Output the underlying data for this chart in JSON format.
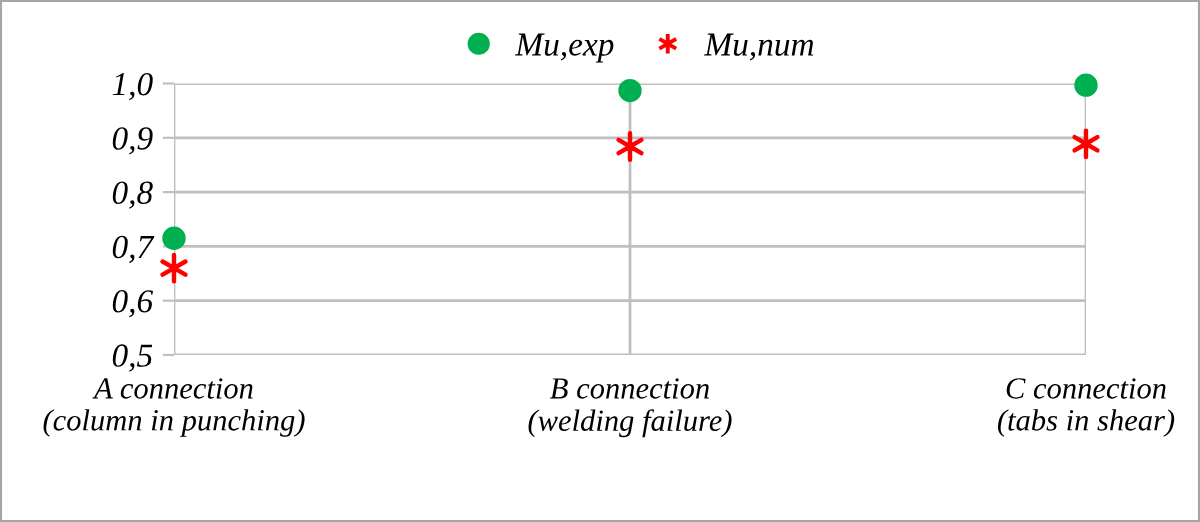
{
  "chart_data": {
    "type": "scatter",
    "categories": [
      "A connection\n(column in punching)",
      "B connection\n(welding failure)",
      "C connection\n(tabs in shear)"
    ],
    "series": [
      {
        "name": "Mu,exp",
        "color": "#00b050",
        "marker": "circle",
        "values": [
          0.715,
          0.987,
          0.997
        ]
      },
      {
        "name": "Mu,num",
        "color": "#ff0000",
        "marker": "cross",
        "values": [
          0.66,
          0.884,
          0.889
        ]
      }
    ],
    "ylim": [
      0.5,
      1.0
    ],
    "yticks": [
      {
        "value": 0.5,
        "label": "0,5"
      },
      {
        "value": 0.6,
        "label": "0,6"
      },
      {
        "value": 0.7,
        "label": "0,7"
      },
      {
        "value": 0.8,
        "label": "0,8"
      },
      {
        "value": 0.9,
        "label": "0,9"
      },
      {
        "value": 1.0,
        "label": "1,0"
      }
    ],
    "grid": true,
    "legend": "top"
  }
}
